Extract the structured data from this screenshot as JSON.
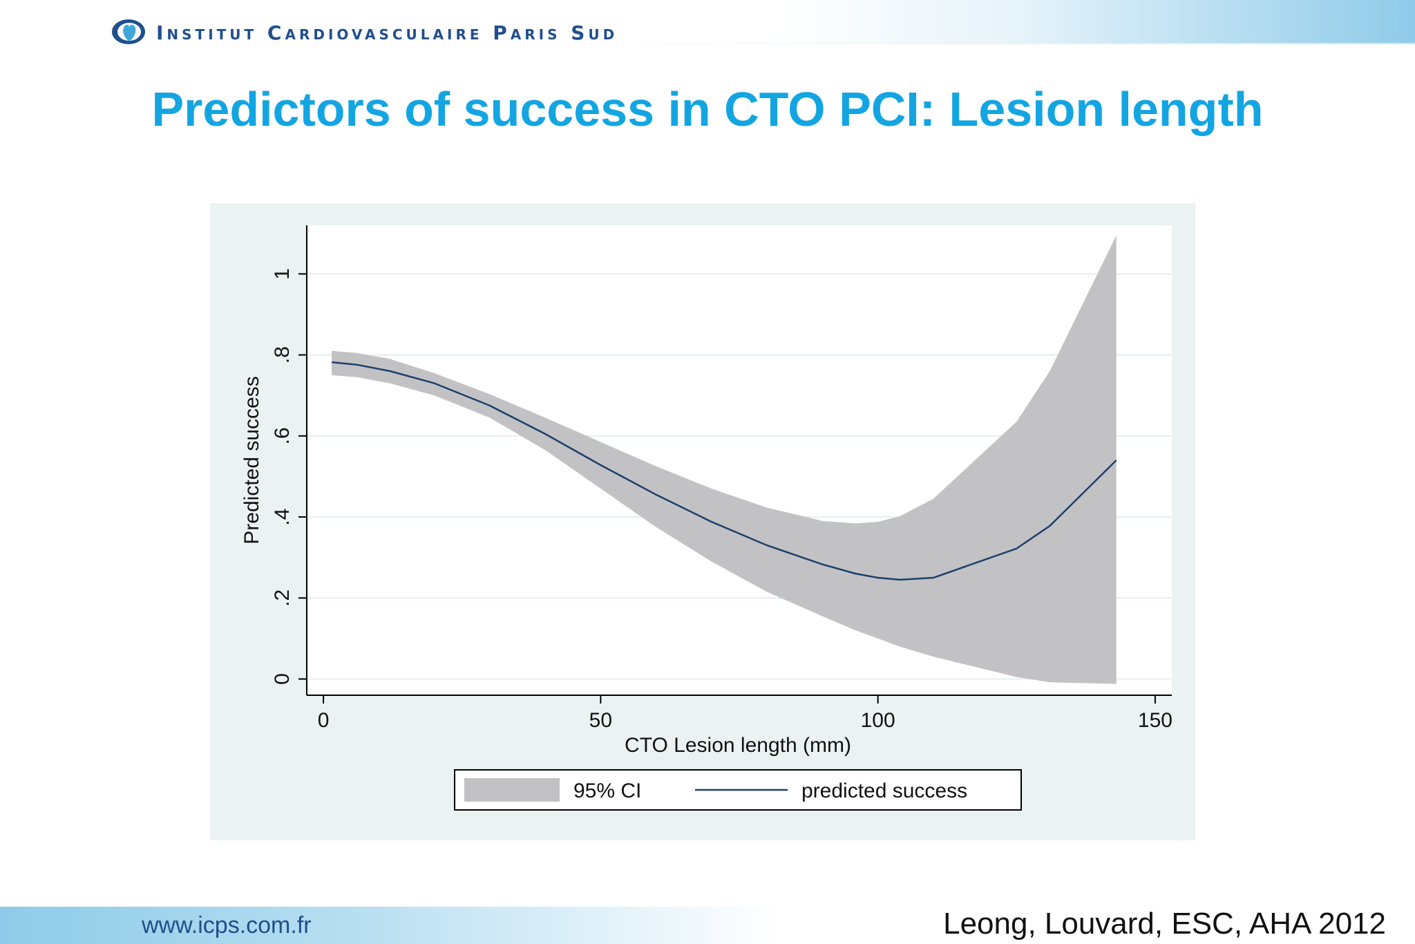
{
  "header": {
    "institute_name": "Institut Cardiovasculaire Paris Sud",
    "logo": "heart-logo-icon",
    "brand_color": "#1f4f8d"
  },
  "slide": {
    "title": "Predictors of success in CTO PCI: Lesion length",
    "title_color": "#13a5e2"
  },
  "chart_data": {
    "type": "line",
    "xlabel": "CTO Lesion length (mm)",
    "ylabel": "Predicted success",
    "xlim": [
      -3,
      153
    ],
    "ylim": [
      -0.04,
      1.12
    ],
    "xticks": [
      0,
      50,
      100,
      150
    ],
    "xtick_labels": [
      "0",
      "50",
      "100",
      "150"
    ],
    "yticks": [
      0,
      0.2,
      0.4,
      0.6,
      0.8,
      1
    ],
    "ytick_labels": [
      "0",
      ".2",
      ".4",
      ".6",
      ".8",
      "1"
    ],
    "grid": "horizontal",
    "legend_position": "bottom",
    "series": [
      {
        "name": "predicted success",
        "color": "#1b3f6b",
        "x": [
          1.5,
          6,
          12,
          20,
          30,
          40,
          50,
          60,
          70,
          80,
          90,
          96,
          100,
          104,
          110,
          125,
          131,
          143
        ],
        "y": [
          0.782,
          0.776,
          0.76,
          0.73,
          0.675,
          0.605,
          0.528,
          0.455,
          0.388,
          0.33,
          0.283,
          0.26,
          0.25,
          0.245,
          0.25,
          0.322,
          0.378,
          0.54
        ]
      }
    ],
    "ci_band": {
      "name": "95% CI",
      "color": "#c2c2c4",
      "x": [
        1.5,
        6,
        12,
        20,
        30,
        40,
        50,
        60,
        70,
        80,
        90,
        96,
        100,
        104,
        110,
        125,
        131,
        143
      ],
      "upper": [
        0.81,
        0.805,
        0.79,
        0.755,
        0.703,
        0.645,
        0.585,
        0.525,
        0.47,
        0.423,
        0.39,
        0.384,
        0.388,
        0.402,
        0.445,
        0.635,
        0.76,
        1.095
      ],
      "lower": [
        0.75,
        0.745,
        0.73,
        0.7,
        0.645,
        0.565,
        0.47,
        0.375,
        0.29,
        0.215,
        0.155,
        0.12,
        0.1,
        0.08,
        0.055,
        0.005,
        -0.008,
        -0.012
      ]
    }
  },
  "footer": {
    "website": "www.icps.com.fr",
    "citation": "Leong, Louvard, ESC, AHA 2012"
  }
}
